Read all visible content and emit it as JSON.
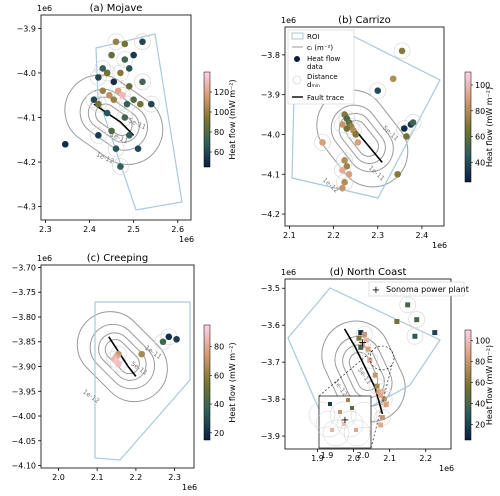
{
  "figure": {
    "panel_titles": [
      "(a) Mojave",
      "(b) Carrizo",
      "(c) Creeping",
      "(d) North Coast"
    ],
    "axis_offset_label": "1e6",
    "colorbar_label": "Heat flow (mW m⁻²)",
    "contour_labels": [
      "1e-12",
      "5e-11",
      "1e-11"
    ],
    "legend": {
      "roi": "ROI",
      "ci": "cᵢ (m⁻²)",
      "heat_flow": [
        "Heat flow",
        "data"
      ],
      "distance": [
        "Distance",
        "dₘᵢₙ"
      ],
      "fault": "Fault trace"
    },
    "sonoma_label": "Sonoma power plant"
  },
  "colors": {
    "roi": "#a9c9dc",
    "contour": "#9a9a9a",
    "fault": "#000000",
    "distance_circle": "#d9d9d9"
  },
  "chart_data": [
    {
      "type": "scatter",
      "title": "(a) Mojave",
      "xlim": [
        2.29,
        2.63
      ],
      "ylim": [
        -4.33,
        -3.87
      ],
      "xticks": [
        2.3,
        2.4,
        2.5,
        2.6
      ],
      "yticks": [
        -3.9,
        -4.0,
        -4.1,
        -4.2,
        -4.3
      ],
      "colorbar": {
        "range": [
          45,
          140
        ],
        "ticks": [
          60,
          80,
          100,
          120
        ]
      },
      "fault": [
        [
          2.41,
          -4.07
        ],
        [
          2.44,
          -4.09
        ],
        [
          2.47,
          -4.11
        ],
        [
          2.5,
          -4.14
        ]
      ],
      "points": [
        {
          "x": 2.46,
          "y": -3.93,
          "v": 100
        },
        {
          "x": 2.48,
          "y": -3.935,
          "v": 90
        },
        {
          "x": 2.52,
          "y": -3.93,
          "v": 60
        },
        {
          "x": 2.45,
          "y": -3.96,
          "v": 85
        },
        {
          "x": 2.48,
          "y": -3.97,
          "v": 75
        },
        {
          "x": 2.5,
          "y": -3.96,
          "v": 55
        },
        {
          "x": 2.43,
          "y": -3.99,
          "v": 70
        },
        {
          "x": 2.44,
          "y": -4.0,
          "v": 80
        },
        {
          "x": 2.47,
          "y": -4.0,
          "v": 95
        },
        {
          "x": 2.49,
          "y": -3.99,
          "v": 65
        },
        {
          "x": 2.42,
          "y": -4.01,
          "v": 60
        },
        {
          "x": 2.455,
          "y": -4.02,
          "v": 50
        },
        {
          "x": 2.52,
          "y": -4.02,
          "v": 75
        },
        {
          "x": 2.49,
          "y": -4.03,
          "v": 85
        },
        {
          "x": 2.465,
          "y": -4.04,
          "v": 120
        },
        {
          "x": 2.43,
          "y": -4.04,
          "v": 100
        },
        {
          "x": 2.41,
          "y": -4.06,
          "v": 60
        },
        {
          "x": 2.445,
          "y": -4.05,
          "v": 110
        },
        {
          "x": 2.475,
          "y": -4.05,
          "v": 130
        },
        {
          "x": 2.5,
          "y": -4.06,
          "v": 80
        },
        {
          "x": 2.42,
          "y": -4.07,
          "v": 90
        },
        {
          "x": 2.455,
          "y": -4.06,
          "v": 100
        },
        {
          "x": 2.485,
          "y": -4.07,
          "v": 70
        },
        {
          "x": 2.515,
          "y": -4.07,
          "v": 90
        },
        {
          "x": 2.54,
          "y": -4.07,
          "v": 60
        },
        {
          "x": 2.44,
          "y": -4.09,
          "v": 65
        },
        {
          "x": 2.48,
          "y": -4.1,
          "v": 75
        },
        {
          "x": 2.45,
          "y": -4.13,
          "v": 80
        },
        {
          "x": 2.42,
          "y": -4.14,
          "v": 55
        },
        {
          "x": 2.49,
          "y": -4.14,
          "v": 70
        },
        {
          "x": 2.46,
          "y": -4.17,
          "v": 65
        },
        {
          "x": 2.51,
          "y": -4.17,
          "v": 60
        },
        {
          "x": 2.47,
          "y": -4.21,
          "v": 70
        },
        {
          "x": 2.345,
          "y": -4.16,
          "v": 50
        },
        {
          "x": 2.44,
          "y": -4.0,
          "v": 90
        }
      ]
    },
    {
      "type": "scatter",
      "title": "(b) Carrizo",
      "xlim": [
        2.09,
        2.45
      ],
      "ylim": [
        -4.23,
        -3.73
      ],
      "xticks": [
        2.1,
        2.2,
        2.3,
        2.4
      ],
      "yticks": [
        -3.8,
        -3.9,
        -4.0,
        -4.1,
        -4.2
      ],
      "colorbar": {
        "range": [
          25,
          110
        ],
        "ticks": [
          40,
          60,
          80,
          100
        ]
      },
      "fault": [
        [
          2.22,
          -3.95
        ],
        [
          2.25,
          -3.99
        ],
        [
          2.28,
          -4.03
        ],
        [
          2.31,
          -4.07
        ]
      ],
      "points": [
        {
          "x": 2.355,
          "y": -3.79,
          "v": 70
        },
        {
          "x": 2.335,
          "y": -3.86,
          "v": 80
        },
        {
          "x": 2.3,
          "y": -3.89,
          "v": 40
        },
        {
          "x": 2.225,
          "y": -3.95,
          "v": 70
        },
        {
          "x": 2.23,
          "y": -3.96,
          "v": 55
        },
        {
          "x": 2.235,
          "y": -3.97,
          "v": 60
        },
        {
          "x": 2.24,
          "y": -3.98,
          "v": 75
        },
        {
          "x": 2.23,
          "y": -3.985,
          "v": 65
        },
        {
          "x": 2.245,
          "y": -3.99,
          "v": 80
        },
        {
          "x": 2.25,
          "y": -4.0,
          "v": 70
        },
        {
          "x": 2.22,
          "y": -3.975,
          "v": 85
        },
        {
          "x": 2.255,
          "y": -4.02,
          "v": 90
        },
        {
          "x": 2.225,
          "y": -4.065,
          "v": 80
        },
        {
          "x": 2.23,
          "y": -4.08,
          "v": 75
        },
        {
          "x": 2.22,
          "y": -4.09,
          "v": 95
        },
        {
          "x": 2.235,
          "y": -4.1,
          "v": 90
        },
        {
          "x": 2.225,
          "y": -4.12,
          "v": 80
        },
        {
          "x": 2.22,
          "y": -4.135,
          "v": 85
        },
        {
          "x": 2.175,
          "y": -4.02,
          "v": 90
        },
        {
          "x": 2.345,
          "y": -4.1,
          "v": 70
        },
        {
          "x": 2.36,
          "y": -3.985,
          "v": 30
        },
        {
          "x": 2.375,
          "y": -3.975,
          "v": 35
        },
        {
          "x": 2.38,
          "y": -3.97,
          "v": 50
        },
        {
          "x": 2.365,
          "y": -4.005,
          "v": 65
        }
      ]
    },
    {
      "type": "scatter",
      "title": "(c) Creeping",
      "xlim": [
        1.955,
        2.35
      ],
      "ylim": [
        -4.105,
        -3.695
      ],
      "xticks": [
        2.0,
        2.1,
        2.2,
        2.3
      ],
      "yticks": [
        -3.7,
        -3.75,
        -3.8,
        -3.85,
        -3.9,
        -3.95,
        -4.0,
        -4.05,
        -4.1
      ],
      "colorbar": {
        "range": [
          15,
          95
        ],
        "ticks": [
          20,
          40,
          60,
          80
        ]
      },
      "fault": [
        [
          2.13,
          -3.84
        ],
        [
          2.155,
          -3.87
        ],
        [
          2.18,
          -3.9
        ],
        [
          2.2,
          -3.92
        ]
      ],
      "points": [
        {
          "x": 2.155,
          "y": -3.875,
          "v": 70
        },
        {
          "x": 2.15,
          "y": -3.88,
          "v": 80
        },
        {
          "x": 2.145,
          "y": -3.885,
          "v": 85
        },
        {
          "x": 2.15,
          "y": -3.89,
          "v": 90
        },
        {
          "x": 2.155,
          "y": -3.895,
          "v": 88
        },
        {
          "x": 2.215,
          "y": -3.875,
          "v": 65
        },
        {
          "x": 2.285,
          "y": -3.84,
          "v": 20
        },
        {
          "x": 2.305,
          "y": -3.845,
          "v": 25
        },
        {
          "x": 2.27,
          "y": -3.85,
          "v": 40
        }
      ]
    },
    {
      "type": "scatter",
      "title": "(d) North Coast",
      "xlim": [
        1.81,
        2.27
      ],
      "ylim": [
        -3.935,
        -3.475
      ],
      "xticks": [
        1.9,
        2.0,
        2.1,
        2.2
      ],
      "yticks": [
        -3.5,
        -3.6,
        -3.7,
        -3.8,
        -3.9
      ],
      "colorbar": {
        "range": [
          5,
          110
        ],
        "ticks": [
          20,
          40,
          60,
          80,
          100
        ]
      },
      "fault": [
        [
          1.975,
          -3.61
        ],
        [
          2.005,
          -3.66
        ],
        [
          2.035,
          -3.72
        ],
        [
          2.06,
          -3.77
        ],
        [
          2.08,
          -3.84
        ]
      ],
      "sonoma": {
        "x": 2.025,
        "y": -3.645
      },
      "points": [
        {
          "x": 2.15,
          "y": -3.545,
          "v": 40
        },
        {
          "x": 2.12,
          "y": -3.59,
          "v": 55
        },
        {
          "x": 2.175,
          "y": -3.585,
          "v": 40
        },
        {
          "x": 2.225,
          "y": -3.62,
          "v": 20
        },
        {
          "x": 2.17,
          "y": -3.63,
          "v": 30
        },
        {
          "x": 2.02,
          "y": -3.62,
          "v": 10
        },
        {
          "x": 2.03,
          "y": -3.625,
          "v": 80
        },
        {
          "x": 2.015,
          "y": -3.635,
          "v": 60
        },
        {
          "x": 2.025,
          "y": -3.655,
          "v": 90
        },
        {
          "x": 2.035,
          "y": -3.64,
          "v": 95
        },
        {
          "x": 2.02,
          "y": -3.66,
          "v": 40
        },
        {
          "x": 2.04,
          "y": -3.665,
          "v": 85
        },
        {
          "x": 2.045,
          "y": -3.695,
          "v": 90
        },
        {
          "x": 2.06,
          "y": -3.735,
          "v": 80
        },
        {
          "x": 2.065,
          "y": -3.765,
          "v": 70
        },
        {
          "x": 2.07,
          "y": -3.78,
          "v": 85
        },
        {
          "x": 2.08,
          "y": -3.78,
          "v": 95
        },
        {
          "x": 2.075,
          "y": -3.79,
          "v": 90
        },
        {
          "x": 2.085,
          "y": -3.8,
          "v": 75
        },
        {
          "x": 2.09,
          "y": -3.815,
          "v": 85
        },
        {
          "x": 2.08,
          "y": -3.85,
          "v": 80
        },
        {
          "x": 2.075,
          "y": -3.87,
          "v": 90
        }
      ]
    }
  ]
}
